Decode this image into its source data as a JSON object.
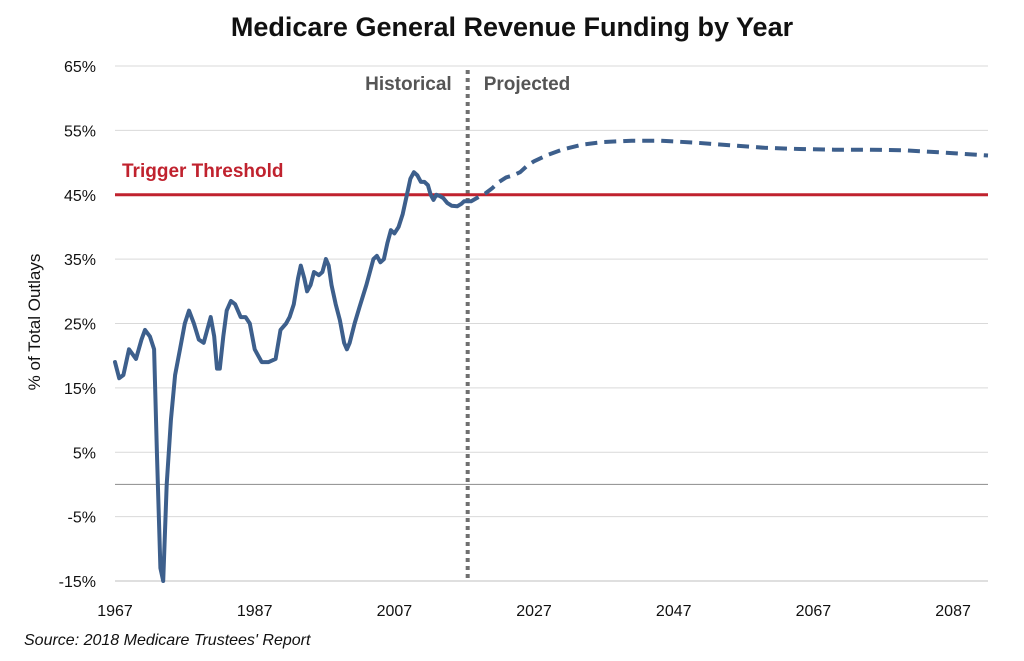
{
  "title": "Medicare General Revenue Funding by Year",
  "source": "Source: 2018 Medicare Trustees' Report",
  "chart_data": {
    "type": "line",
    "title": "Medicare General Revenue Funding by Year",
    "xlabel": "",
    "ylabel": "% of Total Outlays",
    "xlim": [
      1967,
      2092
    ],
    "ylim": [
      -15,
      65
    ],
    "x_ticks": [
      "1967",
      "1987",
      "2007",
      "2027",
      "2047",
      "2067",
      "2087"
    ],
    "y_ticks": [
      "65%",
      "55%",
      "45%",
      "35%",
      "25%",
      "15%",
      "5%",
      "-5%",
      "-15%"
    ],
    "grid": true,
    "colors": {
      "series": "#3d5f8c",
      "threshold": "#c0222e",
      "divider": "#707070",
      "region_label": "#555555"
    },
    "divider_year": 2017.5,
    "region_labels": {
      "left": "Historical",
      "right": "Projected"
    },
    "threshold": {
      "label": "Trigger Threshold",
      "value": 45
    },
    "series": [
      {
        "style": "solid",
        "points": [
          [
            1967,
            19
          ],
          [
            1967.6,
            16.5
          ],
          [
            1968.2,
            17
          ],
          [
            1969,
            21
          ],
          [
            1970,
            19.5
          ],
          [
            1970.8,
            22.5
          ],
          [
            1971.3,
            24
          ],
          [
            1972,
            23
          ],
          [
            1972.6,
            21
          ],
          [
            1973,
            5
          ],
          [
            1973.5,
            -13
          ],
          [
            1973.9,
            -15
          ],
          [
            1974.4,
            0
          ],
          [
            1975,
            10
          ],
          [
            1975.6,
            17
          ],
          [
            1976.3,
            21
          ],
          [
            1977,
            25
          ],
          [
            1977.6,
            27
          ],
          [
            1978.3,
            25
          ],
          [
            1979,
            22.5
          ],
          [
            1979.7,
            22
          ],
          [
            1980.2,
            24
          ],
          [
            1980.7,
            26
          ],
          [
            1981.2,
            23
          ],
          [
            1981.6,
            18
          ],
          [
            1982,
            18
          ],
          [
            1982.5,
            23
          ],
          [
            1983,
            27
          ],
          [
            1983.6,
            28.5
          ],
          [
            1984.2,
            28
          ],
          [
            1985,
            26
          ],
          [
            1985.7,
            26
          ],
          [
            1986.3,
            25
          ],
          [
            1987,
            21
          ],
          [
            1988,
            19
          ],
          [
            1989,
            19
          ],
          [
            1990,
            19.5
          ],
          [
            1990.7,
            24
          ],
          [
            1991.5,
            25
          ],
          [
            1992,
            26
          ],
          [
            1992.6,
            28
          ],
          [
            1993.2,
            32
          ],
          [
            1993.6,
            34
          ],
          [
            1994.1,
            32
          ],
          [
            1994.5,
            30
          ],
          [
            1995,
            31
          ],
          [
            1995.5,
            33
          ],
          [
            1996.2,
            32.5
          ],
          [
            1996.7,
            33
          ],
          [
            1997.2,
            35
          ],
          [
            1997.6,
            34
          ],
          [
            1998,
            31
          ],
          [
            1998.6,
            28
          ],
          [
            1999.2,
            25.5
          ],
          [
            1999.8,
            22
          ],
          [
            2000.2,
            21
          ],
          [
            2000.6,
            22
          ],
          [
            2001.3,
            25
          ],
          [
            2002,
            27.5
          ],
          [
            2003,
            31
          ],
          [
            2004,
            35
          ],
          [
            2004.5,
            35.5
          ],
          [
            2005,
            34.5
          ],
          [
            2005.5,
            35
          ],
          [
            2006,
            37.5
          ],
          [
            2006.5,
            39.5
          ],
          [
            2007,
            39
          ],
          [
            2007.6,
            40
          ],
          [
            2008.2,
            42
          ],
          [
            2008.8,
            45
          ],
          [
            2009.3,
            47.5
          ],
          [
            2009.8,
            48.5
          ],
          [
            2010.3,
            48
          ],
          [
            2010.8,
            47
          ],
          [
            2011.3,
            47
          ],
          [
            2011.8,
            46.5
          ],
          [
            2012.2,
            45
          ],
          [
            2012.6,
            44.2
          ],
          [
            2013,
            45
          ],
          [
            2013.5,
            44.8
          ],
          [
            2014,
            44.5
          ],
          [
            2014.6,
            43.7
          ],
          [
            2015.2,
            43.3
          ],
          [
            2016,
            43.2
          ],
          [
            2016.6,
            43.6
          ],
          [
            2017,
            44
          ],
          [
            2017.5,
            44
          ]
        ]
      },
      {
        "style": "dashed",
        "points": [
          [
            2017.5,
            44
          ],
          [
            2018,
            44
          ],
          [
            2019,
            44.6
          ],
          [
            2020,
            45.2
          ],
          [
            2021,
            46
          ],
          [
            2022,
            47
          ],
          [
            2023,
            47.7
          ],
          [
            2024,
            48
          ],
          [
            2025,
            48.5
          ],
          [
            2026,
            49.5
          ],
          [
            2027,
            50.2
          ],
          [
            2029,
            51.2
          ],
          [
            2031,
            52
          ],
          [
            2034,
            52.8
          ],
          [
            2037,
            53.2
          ],
          [
            2041,
            53.4
          ],
          [
            2045,
            53.4
          ],
          [
            2050,
            53.1
          ],
          [
            2055,
            52.7
          ],
          [
            2060,
            52.3
          ],
          [
            2065,
            52.1
          ],
          [
            2070,
            52
          ],
          [
            2075,
            52
          ],
          [
            2080,
            51.9
          ],
          [
            2085,
            51.6
          ],
          [
            2092,
            51.1
          ]
        ]
      }
    ]
  }
}
